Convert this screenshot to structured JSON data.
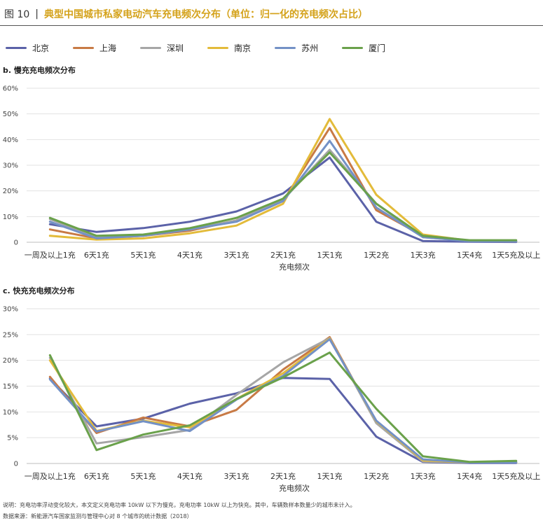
{
  "header": {
    "figure_number": "图 10",
    "separator": "|",
    "title": "典型中国城市私家电动汽车充电频次分布（单位：归一化的充电频次占比）"
  },
  "colors": {
    "北京": "#5b62a8",
    "上海": "#c87a45",
    "深圳": "#a6a6a6",
    "南京": "#e3bb3a",
    "苏州": "#7391c6",
    "厦门": "#6aa14b",
    "title": "#d4a21a"
  },
  "legend": [
    "北京",
    "上海",
    "深圳",
    "南京",
    "苏州",
    "厦门"
  ],
  "chart_data": [
    {
      "type": "line",
      "title": "b. 慢充充电频次分布",
      "xlabel": "充电频次",
      "ylabel": "",
      "categories": [
        "一周及以上1充",
        "6天1充",
        "5天1充",
        "4天1充",
        "3天1充",
        "2天1充",
        "1天1充",
        "1天2充",
        "1天3充",
        "1天4充",
        "1天5充及以上"
      ],
      "y_ticks": [
        "0",
        "10%",
        "20%",
        "30%",
        "40%",
        "50%",
        "60%"
      ],
      "ylim": [
        0,
        60
      ],
      "grid": "horizontal",
      "series": [
        {
          "name": "北京",
          "values": [
            7,
            4,
            5.5,
            8,
            12,
            19,
            33,
            8,
            0.5,
            0.2,
            0.1
          ]
        },
        {
          "name": "上海",
          "values": [
            5,
            1.5,
            2.5,
            4.5,
            8.5,
            16,
            44.5,
            12.5,
            2.5,
            0.5,
            0.3
          ]
        },
        {
          "name": "深圳",
          "values": [
            9,
            2,
            2.5,
            5,
            8.5,
            16.5,
            36,
            15,
            2,
            0.5,
            0.4
          ]
        },
        {
          "name": "南京",
          "values": [
            2.5,
            1,
            1.5,
            3.5,
            6.5,
            15,
            48,
            18.5,
            3,
            0.6,
            0.4
          ]
        },
        {
          "name": "苏州",
          "values": [
            8,
            1.5,
            2.5,
            5,
            8,
            16,
            39.5,
            13.5,
            2,
            0.4,
            0.3
          ]
        },
        {
          "name": "厦门",
          "values": [
            9.5,
            2.5,
            3,
            5.5,
            9.5,
            17,
            35,
            15,
            2.5,
            0.8,
            0.8
          ]
        }
      ]
    },
    {
      "type": "line",
      "title": "c. 快充充电频次分布",
      "xlabel": "充电频次",
      "ylabel": "",
      "categories": [
        "一周及以上1充",
        "6天1充",
        "5天1充",
        "4天1充",
        "3天1充",
        "2天1充",
        "1天1充",
        "1天2充",
        "1天3充",
        "1天4充",
        "1天5充及以上"
      ],
      "y_ticks": [
        "0",
        "5%",
        "10%",
        "15%",
        "20%",
        "25%",
        "30%"
      ],
      "ylim": [
        0,
        30
      ],
      "grid": "horizontal",
      "series": [
        {
          "name": "北京",
          "values": [
            16.5,
            7.2,
            8.7,
            11.6,
            13.6,
            16.6,
            16.4,
            5.2,
            0.3,
            0.1,
            0.1
          ]
        },
        {
          "name": "上海",
          "values": [
            16.8,
            5.9,
            8.9,
            7.2,
            10.4,
            18.2,
            24.5,
            8,
            0.5,
            0.2,
            0.2
          ]
        },
        {
          "name": "深圳",
          "values": [
            20.5,
            3.9,
            5.1,
            6.5,
            13.3,
            19.6,
            24.3,
            7.8,
            0.4,
            0.2,
            0.3
          ]
        },
        {
          "name": "南京",
          "values": [
            20,
            6.3,
            8.3,
            7,
            12.5,
            17.5,
            24.2,
            8.2,
            0.6,
            0.2,
            0.2
          ]
        },
        {
          "name": "苏州",
          "values": [
            16.3,
            6.2,
            8.2,
            6.3,
            12.4,
            17,
            24.1,
            8.3,
            0.8,
            0.2,
            0.2
          ]
        },
        {
          "name": "厦门",
          "values": [
            21,
            2.6,
            5.6,
            7.4,
            12.5,
            16.7,
            21.5,
            10.6,
            1.4,
            0.3,
            0.5
          ]
        }
      ]
    }
  ],
  "notes": {
    "explanation": "说明：充电功率浮动变化较大，本文定义充电功率 10kW 以下为慢充，充电功率 10kW 以上为快充。其中，车辆数样本数量少的城市未计入。",
    "source": "数据来源：新能源汽车国家监测与管理中心对 8 个城市的统计数据（2018）"
  }
}
